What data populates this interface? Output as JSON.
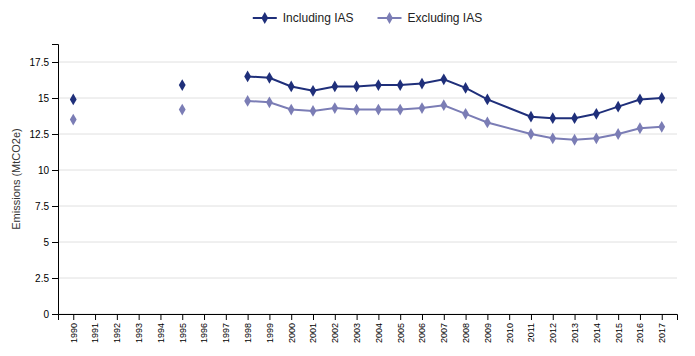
{
  "chart_data": {
    "type": "line",
    "y_label": "Emissions (MtCO2e)",
    "x": [
      1990,
      1991,
      1992,
      1993,
      1994,
      1995,
      1996,
      1997,
      1998,
      1999,
      2000,
      2001,
      2002,
      2003,
      2004,
      2005,
      2006,
      2007,
      2008,
      2009,
      2011,
      2012,
      2013,
      2014,
      2015,
      2016,
      2017
    ],
    "series": [
      {
        "name": "Including IAS",
        "color": "#1f2f7a",
        "marker": "diamond",
        "values": [
          14.9,
          null,
          null,
          null,
          null,
          15.9,
          null,
          null,
          16.5,
          16.4,
          15.8,
          15.5,
          15.8,
          15.8,
          15.9,
          15.9,
          16.0,
          16.3,
          15.7,
          14.9,
          13.7,
          13.6,
          13.6,
          13.9,
          14.4,
          14.9,
          15.0
        ]
      },
      {
        "name": "Excluding IAS",
        "color": "#7b7db5",
        "marker": "diamond",
        "values": [
          13.5,
          null,
          null,
          null,
          null,
          14.2,
          null,
          null,
          14.8,
          14.7,
          14.2,
          14.1,
          14.3,
          14.2,
          14.2,
          14.2,
          14.3,
          14.5,
          13.9,
          13.3,
          12.5,
          12.2,
          12.1,
          12.2,
          12.5,
          12.9,
          13.0
        ]
      }
    ],
    "xlim": [
      1989.3,
      2017.7
    ],
    "xticks": [
      1990,
      1991,
      1992,
      1993,
      1994,
      1995,
      1996,
      1997,
      1998,
      1999,
      2000,
      2001,
      2002,
      2003,
      2004,
      2005,
      2006,
      2007,
      2008,
      2009,
      2010,
      2011,
      2012,
      2013,
      2014,
      2015,
      2016,
      2017
    ],
    "ylim": [
      0,
      18.75
    ],
    "yticks": [
      0,
      2.5,
      5,
      7.5,
      10,
      12.5,
      15,
      17.5
    ],
    "grid": true,
    "legend": "top"
  }
}
